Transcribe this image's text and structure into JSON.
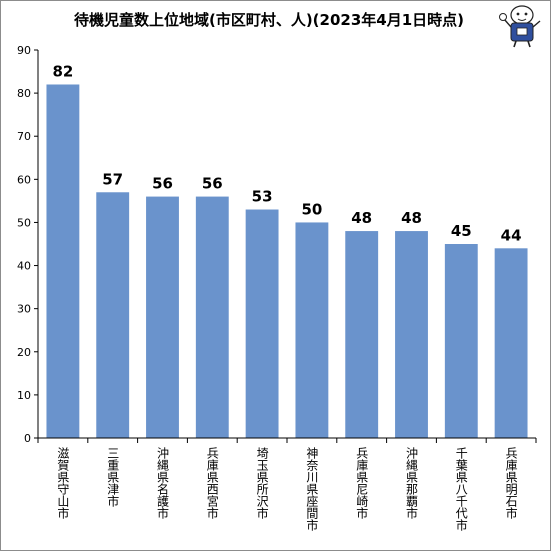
{
  "chart_data": {
    "type": "bar",
    "title": "待機児童数上位地域(市区町村、人)(2023年4月1日時点)",
    "xlabel": "",
    "ylabel": "",
    "ylim": [
      0,
      90
    ],
    "yticks": [
      0,
      10,
      20,
      30,
      40,
      50,
      60,
      70,
      80,
      90
    ],
    "grid": false,
    "data_labels": true,
    "bar_color": "#6a93cc",
    "categories": [
      "滋賀県守山市",
      "三重県津市",
      "沖縄県名護市",
      "兵庫県西宮市",
      "埼玉県所沢市",
      "神奈川県座間市",
      "兵庫県尼崎市",
      "沖縄県那覇市",
      "千葉県八千代市",
      "兵庫県明石市"
    ],
    "values": [
      82,
      57,
      56,
      56,
      53,
      50,
      48,
      48,
      45,
      44
    ]
  },
  "mascot": {
    "icon": "mascot-character-icon"
  }
}
